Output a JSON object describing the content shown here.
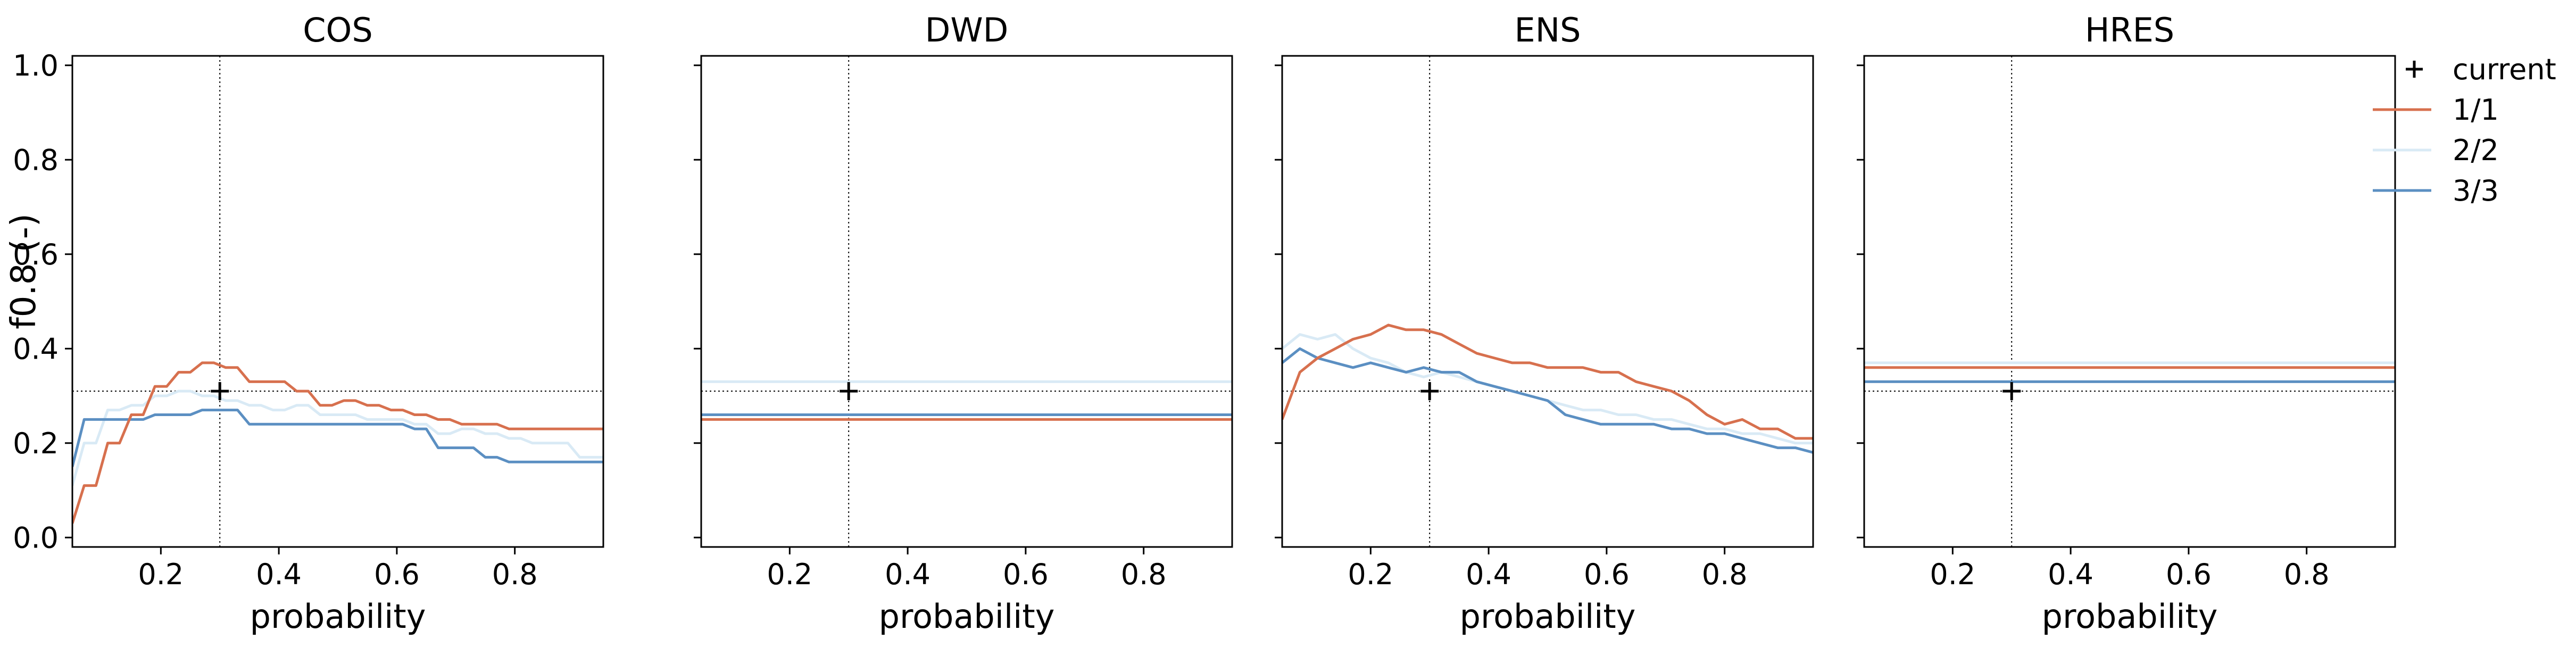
{
  "figure": {
    "ylabel": "f0.8 (-)",
    "legend": {
      "placement": "outside-right",
      "entries": [
        {
          "label": "current",
          "marker": "plus",
          "color": "#000000"
        },
        {
          "label": "1/1",
          "color": "#d7704e"
        },
        {
          "label": "2/2",
          "color": "#d9eaf5"
        },
        {
          "label": "3/3",
          "color": "#5b8fc2"
        }
      ]
    }
  },
  "chart_data": [
    {
      "type": "line",
      "title": "COS",
      "xlabel": "probability",
      "ylabel": "f0.8 (-)",
      "xlim": [
        0.05,
        0.95
      ],
      "ylim": [
        -0.02,
        1.02
      ],
      "xticks": [
        0.2,
        0.4,
        0.6,
        0.8
      ],
      "yticks": [
        0.0,
        0.2,
        0.4,
        0.6,
        0.8,
        1.0
      ],
      "show_yticklabels": true,
      "grid": false,
      "current": {
        "x": 0.3,
        "y": 0.31
      },
      "series": [
        {
          "name": "1/1",
          "color": "#d7704e",
          "x": [
            0.05,
            0.07,
            0.09,
            0.11,
            0.13,
            0.15,
            0.17,
            0.19,
            0.21,
            0.23,
            0.25,
            0.27,
            0.29,
            0.31,
            0.33,
            0.35,
            0.37,
            0.39,
            0.41,
            0.43,
            0.45,
            0.47,
            0.49,
            0.51,
            0.53,
            0.55,
            0.57,
            0.59,
            0.61,
            0.63,
            0.65,
            0.67,
            0.69,
            0.71,
            0.73,
            0.75,
            0.77,
            0.79,
            0.81,
            0.83,
            0.85,
            0.87,
            0.89,
            0.91,
            0.93,
            0.95
          ],
          "y": [
            0.03,
            0.11,
            0.11,
            0.2,
            0.2,
            0.26,
            0.26,
            0.32,
            0.32,
            0.35,
            0.35,
            0.37,
            0.37,
            0.36,
            0.36,
            0.33,
            0.33,
            0.33,
            0.33,
            0.31,
            0.31,
            0.28,
            0.28,
            0.29,
            0.29,
            0.28,
            0.28,
            0.27,
            0.27,
            0.26,
            0.26,
            0.25,
            0.25,
            0.24,
            0.24,
            0.24,
            0.24,
            0.23,
            0.23,
            0.23,
            0.23,
            0.23,
            0.23,
            0.23,
            0.23,
            0.23
          ]
        },
        {
          "name": "2/2",
          "color": "#d9eaf5",
          "x": [
            0.05,
            0.07,
            0.09,
            0.11,
            0.13,
            0.15,
            0.17,
            0.19,
            0.21,
            0.23,
            0.25,
            0.27,
            0.29,
            0.31,
            0.33,
            0.35,
            0.37,
            0.39,
            0.41,
            0.43,
            0.45,
            0.47,
            0.49,
            0.51,
            0.53,
            0.55,
            0.57,
            0.59,
            0.61,
            0.63,
            0.65,
            0.67,
            0.69,
            0.71,
            0.73,
            0.75,
            0.77,
            0.79,
            0.81,
            0.83,
            0.85,
            0.87,
            0.89,
            0.91,
            0.93,
            0.95
          ],
          "y": [
            0.11,
            0.2,
            0.2,
            0.27,
            0.27,
            0.28,
            0.28,
            0.3,
            0.3,
            0.31,
            0.31,
            0.3,
            0.3,
            0.29,
            0.29,
            0.28,
            0.28,
            0.27,
            0.27,
            0.28,
            0.28,
            0.26,
            0.26,
            0.26,
            0.26,
            0.25,
            0.25,
            0.25,
            0.25,
            0.24,
            0.24,
            0.22,
            0.22,
            0.23,
            0.23,
            0.22,
            0.22,
            0.21,
            0.21,
            0.2,
            0.2,
            0.2,
            0.2,
            0.17,
            0.17,
            0.17
          ]
        },
        {
          "name": "3/3",
          "color": "#5b8fc2",
          "x": [
            0.05,
            0.07,
            0.09,
            0.11,
            0.13,
            0.15,
            0.17,
            0.19,
            0.21,
            0.23,
            0.25,
            0.27,
            0.29,
            0.31,
            0.33,
            0.35,
            0.37,
            0.39,
            0.41,
            0.43,
            0.45,
            0.47,
            0.49,
            0.51,
            0.53,
            0.55,
            0.57,
            0.59,
            0.61,
            0.63,
            0.65,
            0.67,
            0.69,
            0.71,
            0.73,
            0.75,
            0.77,
            0.79,
            0.81,
            0.83,
            0.85,
            0.87,
            0.89,
            0.91,
            0.93,
            0.95
          ],
          "y": [
            0.15,
            0.25,
            0.25,
            0.25,
            0.25,
            0.25,
            0.25,
            0.26,
            0.26,
            0.26,
            0.26,
            0.27,
            0.27,
            0.27,
            0.27,
            0.24,
            0.24,
            0.24,
            0.24,
            0.24,
            0.24,
            0.24,
            0.24,
            0.24,
            0.24,
            0.24,
            0.24,
            0.24,
            0.24,
            0.23,
            0.23,
            0.19,
            0.19,
            0.19,
            0.19,
            0.17,
            0.17,
            0.16,
            0.16,
            0.16,
            0.16,
            0.16,
            0.16,
            0.16,
            0.16,
            0.16
          ]
        }
      ]
    },
    {
      "type": "line",
      "title": "DWD",
      "xlabel": "probability",
      "xlim": [
        0.05,
        0.95
      ],
      "ylim": [
        -0.02,
        1.02
      ],
      "xticks": [
        0.2,
        0.4,
        0.6,
        0.8
      ],
      "yticks": [
        0.0,
        0.2,
        0.4,
        0.6,
        0.8,
        1.0
      ],
      "show_yticklabels": false,
      "grid": false,
      "current": {
        "x": 0.3,
        "y": 0.31
      },
      "series": [
        {
          "name": "1/1",
          "color": "#d7704e",
          "x": [
            0.05,
            0.95
          ],
          "y": [
            0.25,
            0.25
          ]
        },
        {
          "name": "2/2",
          "color": "#d9eaf5",
          "x": [
            0.05,
            0.95
          ],
          "y": [
            0.33,
            0.33
          ]
        },
        {
          "name": "3/3",
          "color": "#5b8fc2",
          "x": [
            0.05,
            0.95
          ],
          "y": [
            0.26,
            0.26
          ]
        }
      ]
    },
    {
      "type": "line",
      "title": "ENS",
      "xlabel": "probability",
      "xlim": [
        0.05,
        0.95
      ],
      "ylim": [
        -0.02,
        1.02
      ],
      "xticks": [
        0.2,
        0.4,
        0.6,
        0.8
      ],
      "yticks": [
        0.0,
        0.2,
        0.4,
        0.6,
        0.8,
        1.0
      ],
      "show_yticklabels": false,
      "grid": false,
      "current": {
        "x": 0.3,
        "y": 0.31
      },
      "series": [
        {
          "name": "1/1",
          "color": "#d7704e",
          "x": [
            0.05,
            0.08,
            0.11,
            0.14,
            0.17,
            0.2,
            0.23,
            0.26,
            0.29,
            0.32,
            0.35,
            0.38,
            0.41,
            0.44,
            0.47,
            0.5,
            0.53,
            0.56,
            0.59,
            0.62,
            0.65,
            0.68,
            0.71,
            0.74,
            0.77,
            0.8,
            0.83,
            0.86,
            0.89,
            0.92,
            0.95
          ],
          "y": [
            0.25,
            0.35,
            0.38,
            0.4,
            0.42,
            0.43,
            0.45,
            0.44,
            0.44,
            0.43,
            0.41,
            0.39,
            0.38,
            0.37,
            0.37,
            0.36,
            0.36,
            0.36,
            0.35,
            0.35,
            0.33,
            0.32,
            0.31,
            0.29,
            0.26,
            0.24,
            0.25,
            0.23,
            0.23,
            0.21,
            0.21
          ]
        },
        {
          "name": "2/2",
          "color": "#d9eaf5",
          "x": [
            0.05,
            0.08,
            0.11,
            0.14,
            0.17,
            0.2,
            0.23,
            0.26,
            0.29,
            0.32,
            0.35,
            0.38,
            0.41,
            0.44,
            0.47,
            0.5,
            0.53,
            0.56,
            0.59,
            0.62,
            0.65,
            0.68,
            0.71,
            0.74,
            0.77,
            0.8,
            0.83,
            0.86,
            0.89,
            0.92,
            0.95
          ],
          "y": [
            0.4,
            0.43,
            0.42,
            0.43,
            0.4,
            0.38,
            0.37,
            0.35,
            0.34,
            0.35,
            0.34,
            0.33,
            0.32,
            0.31,
            0.3,
            0.29,
            0.28,
            0.27,
            0.27,
            0.26,
            0.26,
            0.25,
            0.25,
            0.24,
            0.23,
            0.23,
            0.22,
            0.22,
            0.21,
            0.2,
            0.2
          ]
        },
        {
          "name": "3/3",
          "color": "#5b8fc2",
          "x": [
            0.05,
            0.08,
            0.11,
            0.14,
            0.17,
            0.2,
            0.23,
            0.26,
            0.29,
            0.32,
            0.35,
            0.38,
            0.41,
            0.44,
            0.47,
            0.5,
            0.53,
            0.56,
            0.59,
            0.62,
            0.65,
            0.68,
            0.71,
            0.74,
            0.77,
            0.8,
            0.83,
            0.86,
            0.89,
            0.92,
            0.95
          ],
          "y": [
            0.37,
            0.4,
            0.38,
            0.37,
            0.36,
            0.37,
            0.36,
            0.35,
            0.36,
            0.35,
            0.35,
            0.33,
            0.32,
            0.31,
            0.3,
            0.29,
            0.26,
            0.25,
            0.24,
            0.24,
            0.24,
            0.24,
            0.23,
            0.23,
            0.22,
            0.22,
            0.21,
            0.2,
            0.19,
            0.19,
            0.18
          ]
        }
      ]
    },
    {
      "type": "line",
      "title": "HRES",
      "xlabel": "probability",
      "xlim": [
        0.05,
        0.95
      ],
      "ylim": [
        -0.02,
        1.02
      ],
      "xticks": [
        0.2,
        0.4,
        0.6,
        0.8
      ],
      "yticks": [
        0.0,
        0.2,
        0.4,
        0.6,
        0.8,
        1.0
      ],
      "show_yticklabels": false,
      "grid": false,
      "current": {
        "x": 0.3,
        "y": 0.31
      },
      "series": [
        {
          "name": "1/1",
          "color": "#d7704e",
          "x": [
            0.05,
            0.95
          ],
          "y": [
            0.36,
            0.36
          ]
        },
        {
          "name": "2/2",
          "color": "#d9eaf5",
          "x": [
            0.05,
            0.95
          ],
          "y": [
            0.37,
            0.37
          ]
        },
        {
          "name": "3/3",
          "color": "#5b8fc2",
          "x": [
            0.05,
            0.95
          ],
          "y": [
            0.33,
            0.33
          ]
        }
      ]
    }
  ]
}
